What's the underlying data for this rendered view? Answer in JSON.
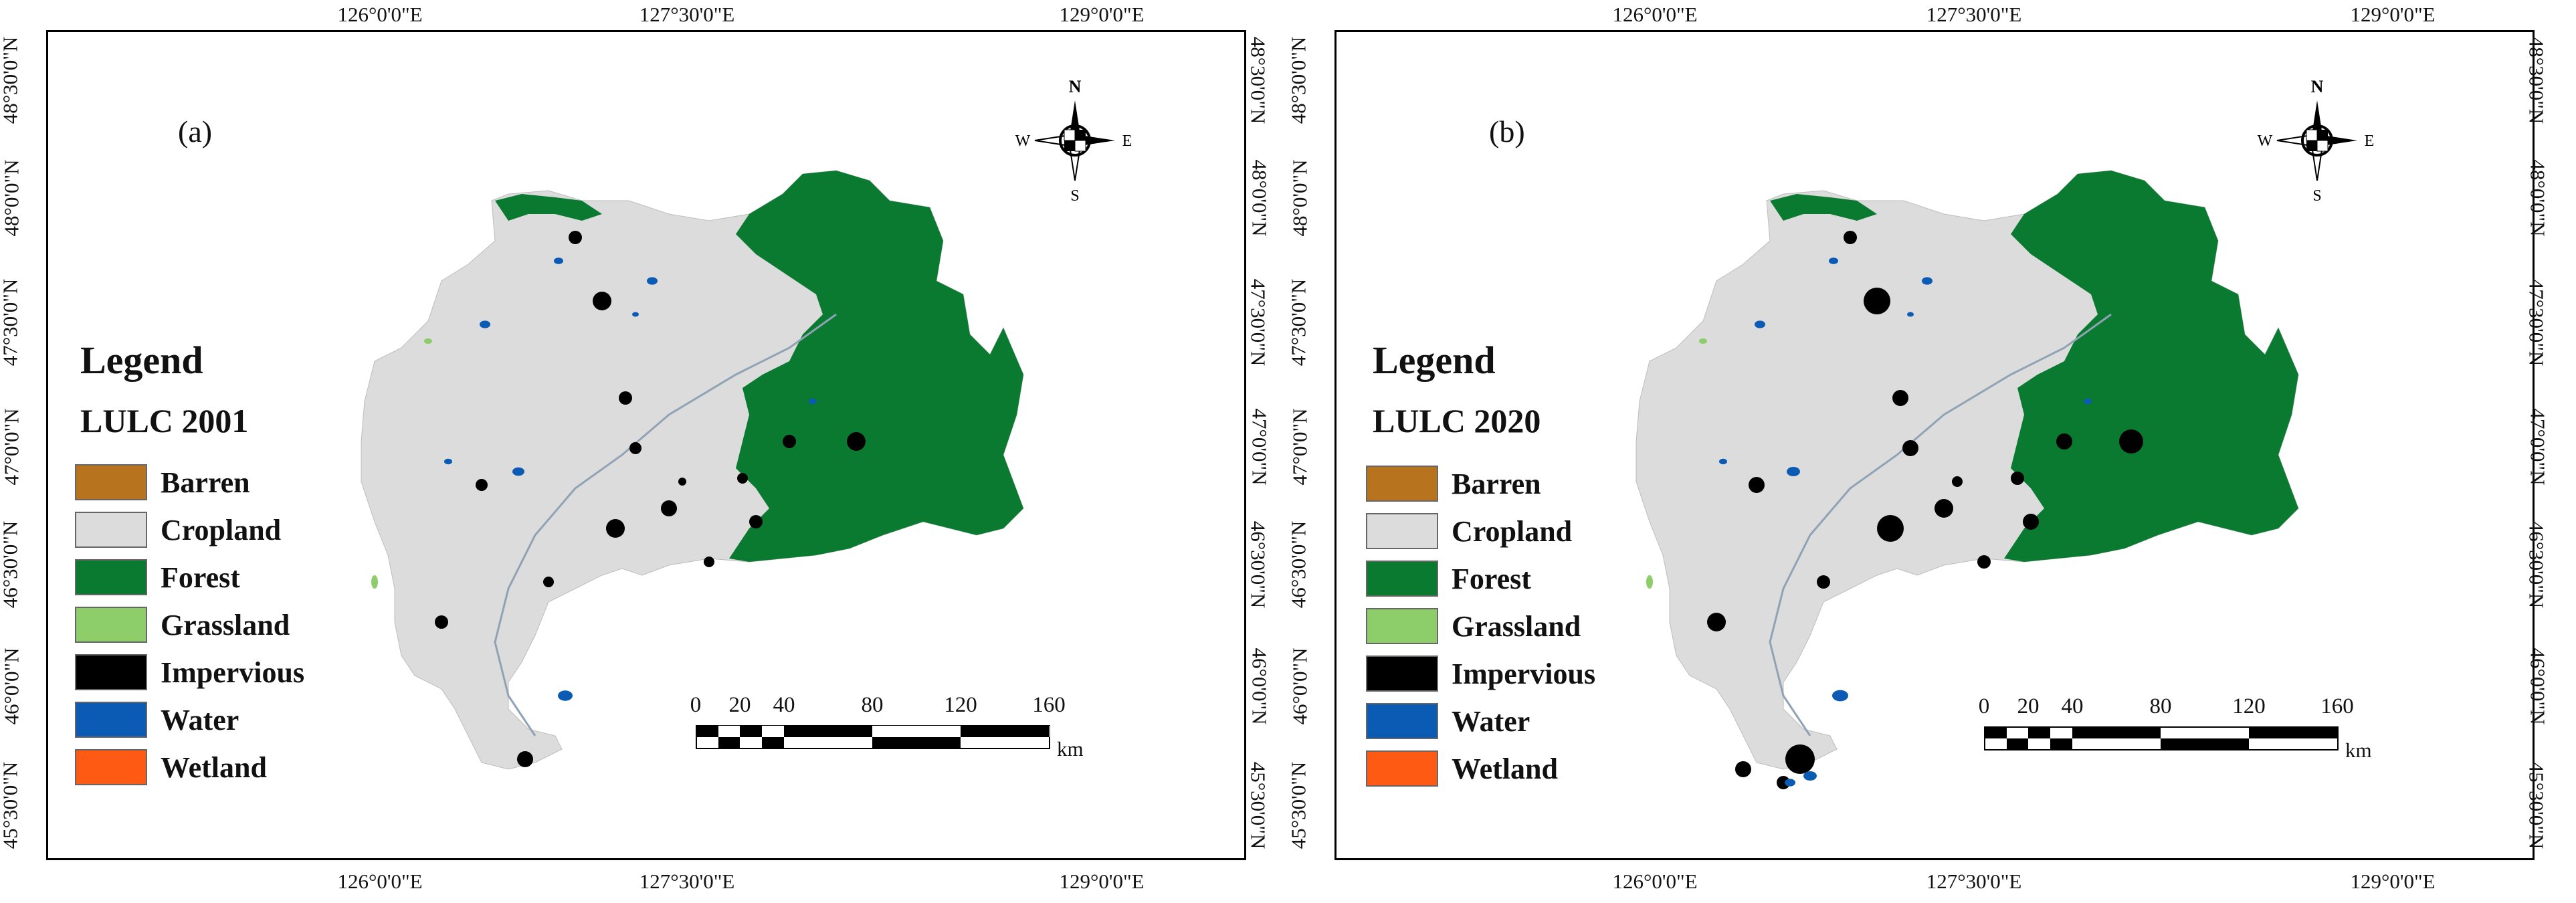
{
  "colors": {
    "barren": "#B8731E",
    "cropland": "#DCDCDC",
    "forest": "#0A7A31",
    "grassland": "#8DCD6A",
    "impervious": "#000000",
    "water": "#0B5BB5",
    "wetland": "#FF5A14"
  },
  "panels": [
    {
      "letter": "(a)",
      "legend_title": "Legend",
      "legend_subtitle": "LULC 2001",
      "legend_items": [
        {
          "label": "Barren",
          "color": "#B8731E"
        },
        {
          "label": "Cropland",
          "color": "#DCDCDC"
        },
        {
          "label": "Forest",
          "color": "#0A7A31"
        },
        {
          "label": "Grassland",
          "color": "#8DCD6A"
        },
        {
          "label": "Impervious",
          "color": "#000000"
        },
        {
          "label": "Water",
          "color": "#0B5BB5"
        },
        {
          "label": "Wetland",
          "color": "#FF5A14"
        }
      ],
      "lon_labels": [
        "126°0'0\"E",
        "127°30'0\"E",
        "129°0'0\"E"
      ],
      "lat_labels": [
        "48°30'0\"N",
        "48°0'0\"N",
        "47°30'0\"N",
        "47°0'0\"N",
        "46°30'0\"N",
        "46°0'0\"N",
        "45°30'0\"N"
      ],
      "compass": {
        "n": "N",
        "s": "S",
        "e": "E",
        "w": "W"
      },
      "scale": {
        "ticks": [
          "0",
          "20",
          "40",
          "80",
          "120",
          "160"
        ],
        "unit": "km"
      }
    },
    {
      "letter": "(b)",
      "legend_title": "Legend",
      "legend_subtitle": "LULC 2020",
      "legend_items": [
        {
          "label": "Barren",
          "color": "#B8731E"
        },
        {
          "label": "Cropland",
          "color": "#DCDCDC"
        },
        {
          "label": "Forest",
          "color": "#0A7A31"
        },
        {
          "label": "Grassland",
          "color": "#8DCD6A"
        },
        {
          "label": "Impervious",
          "color": "#000000"
        },
        {
          "label": "Water",
          "color": "#0B5BB5"
        },
        {
          "label": "Wetland",
          "color": "#FF5A14"
        }
      ],
      "lon_labels": [
        "126°0'0\"E",
        "127°30'0\"E",
        "129°0'0\"E"
      ],
      "lat_labels": [
        "48°30'0\"N",
        "48°0'0\"N",
        "47°30'0\"N",
        "47°0'0\"N",
        "46°30'0\"N",
        "46°0'0\"N",
        "45°30'0\"N"
      ],
      "compass": {
        "n": "N",
        "s": "S",
        "e": "E",
        "w": "W"
      },
      "scale": {
        "ticks": [
          "0",
          "20",
          "40",
          "80",
          "120",
          "160"
        ],
        "unit": "km"
      }
    }
  ]
}
